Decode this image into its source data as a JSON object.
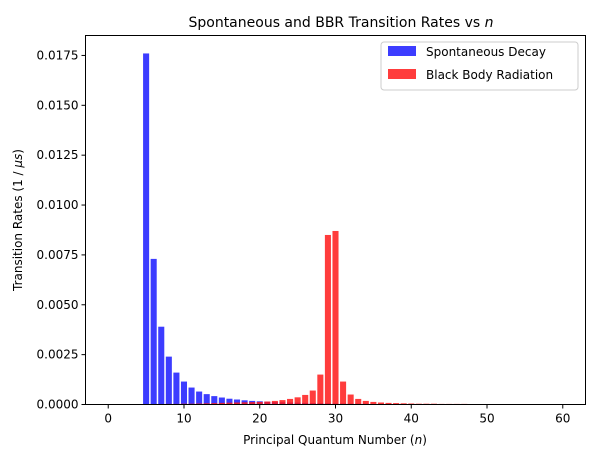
{
  "chart_data": {
    "type": "bar",
    "title": "Spontaneous and BBR Transition Rates vs ",
    "title_var": "n",
    "xlabel": "Principal Quantum Number (",
    "xlabel_var": "n",
    "xlabel_end": ")",
    "ylabel": "Transition Rates (1 / ",
    "ylabel_var": "μs",
    "ylabel_end": ")",
    "xlim": [
      -3.0,
      63.0
    ],
    "ylim": [
      0,
      0.0185
    ],
    "xticks": [
      0,
      10,
      20,
      30,
      40,
      50,
      60
    ],
    "xtick_labels": [
      "0",
      "10",
      "20",
      "30",
      "40",
      "50",
      "60"
    ],
    "yticks": [
      0,
      0.0025,
      0.005,
      0.0075,
      0.01,
      0.0125,
      0.015,
      0.0175
    ],
    "ytick_labels": [
      "0.0000",
      "0.0025",
      "0.0050",
      "0.0075",
      "0.0100",
      "0.0125",
      "0.0150",
      "0.0175"
    ],
    "grid": false,
    "legend_position": "top-right",
    "bar_width": 0.8,
    "series": [
      {
        "name": "Spontaneous Decay",
        "color": "#1a1aff",
        "x": [
          5,
          6,
          7,
          8,
          9,
          10,
          11,
          12,
          13,
          14,
          15,
          16,
          17,
          18,
          19,
          20,
          21,
          22,
          23,
          24,
          25,
          26,
          27,
          28,
          29,
          30,
          31,
          32,
          33,
          34,
          35,
          36,
          37,
          38,
          39,
          40,
          41,
          42,
          43,
          44,
          45,
          46,
          47,
          48,
          49,
          50,
          51,
          52,
          53
        ],
        "values": [
          0.0176,
          0.0073,
          0.0039,
          0.0024,
          0.0016,
          0.00115,
          0.00085,
          0.00065,
          0.00052,
          0.00042,
          0.00035,
          0.00029,
          0.00025,
          0.00021,
          0.00018,
          0.00016,
          0.00014,
          0.00012,
          0.00011,
          0.0001,
          9e-05,
          8e-05,
          7e-05,
          6e-05,
          6e-05,
          5e-05,
          5e-05,
          4e-05,
          4e-05,
          4e-05,
          3e-05,
          3e-05,
          3e-05,
          3e-05,
          2e-05,
          2e-05,
          2e-05,
          2e-05,
          2e-05,
          2e-05,
          2e-05,
          1e-05,
          1e-05,
          1e-05,
          1e-05,
          1e-05,
          1e-05,
          1e-05,
          1e-05
        ]
      },
      {
        "name": "Black Body Radiation",
        "color": "#ff1a1a",
        "x": [
          5,
          6,
          7,
          8,
          9,
          10,
          11,
          12,
          13,
          14,
          15,
          16,
          17,
          18,
          19,
          20,
          21,
          22,
          23,
          24,
          25,
          26,
          27,
          28,
          29,
          30,
          31,
          32,
          33,
          34,
          35,
          36,
          37,
          38,
          39,
          40,
          41,
          42,
          43,
          44,
          45,
          46,
          47,
          48,
          49,
          50,
          51,
          52,
          53
        ],
        "values": [
          2e-05,
          2e-05,
          2e-05,
          3e-05,
          3e-05,
          4e-05,
          4e-05,
          5e-05,
          6e-05,
          7e-05,
          8e-05,
          9e-05,
          0.0001,
          0.00011,
          0.00012,
          0.00013,
          0.00015,
          0.00018,
          0.00022,
          0.00028,
          0.00036,
          0.00048,
          0.0007,
          0.0015,
          0.0085,
          0.0087,
          0.00115,
          0.0005,
          0.00028,
          0.00018,
          0.00013,
          0.0001,
          8e-05,
          7e-05,
          6e-05,
          5e-05,
          4e-05,
          4e-05,
          4e-05,
          3e-05,
          3e-05,
          3e-05,
          3e-05,
          2e-05,
          2e-05,
          2e-05,
          2e-05,
          2e-05,
          2e-05
        ]
      }
    ]
  }
}
